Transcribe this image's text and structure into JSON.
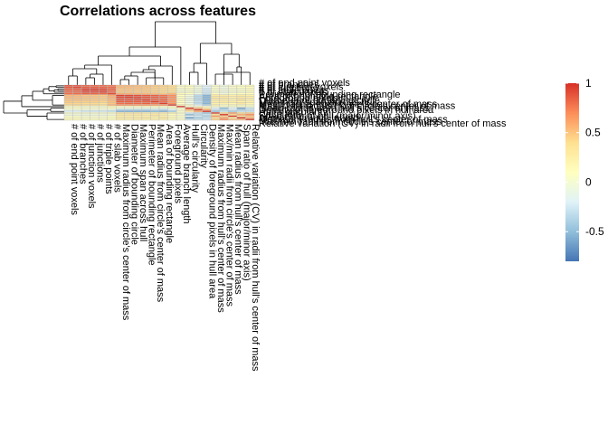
{
  "chart_data": {
    "type": "heatmap",
    "title": "Correlations across features",
    "features": [
      "# of end point voxels",
      "# of branches",
      "# of junction voxels",
      "# of junctions",
      "# of triple points",
      "# of slab voxels",
      "Maximum radius from circle's center of mass",
      "Diameter of bounding circle",
      "Maximum span across hull",
      "Perimeter of bounding rectangle",
      "Mean radius from circle's center of mass",
      "Area of bounding rectangle",
      "Foreground pixels",
      "Average branch length",
      "Hull's circularity",
      "Circularity",
      "Density of foreground pixels in hull area",
      "Maximum radius from hull's center of mass",
      "Max/min radii from circle's center of mass",
      "Mean radius from hull's center of mass",
      "Span ratio of hull (major/minor axis)",
      "Relative variation (CV) in radii from hull's center of mass"
    ],
    "order_columns": [
      0,
      1,
      2,
      3,
      4,
      5,
      6,
      7,
      8,
      9,
      10,
      11,
      12,
      13,
      14,
      15,
      16,
      17,
      18,
      19,
      20,
      21
    ],
    "order_rows": [
      21,
      20,
      19,
      18,
      17,
      16,
      15,
      14,
      13,
      12,
      11,
      10,
      9,
      8,
      7,
      6,
      5,
      4,
      3,
      2,
      1,
      0
    ],
    "row_labels": [
      "# of end point voxels",
      "# of branches",
      "# of junction voxels",
      "# of junctions",
      "# of triple points",
      "# of slab voxels",
      "Perimeter of bounding rectangle",
      "Area of bounding rectangle",
      "Foreground pixels",
      "Diameter of bounding circle",
      "Maximum span across hull",
      "Mean radius from circle's center of mass",
      "Maximum radius from circle's center of mass",
      "Mean radius from hull's center of mass",
      "Density of foreground pixels in hull area",
      "Hull's circularity",
      "Circularity",
      "Span ratio of hull (major/minor axis)",
      "Average branch length",
      "Maximum radius from hull's center of mass",
      "Max/min radii from circle's center of mass",
      "Relative variation (CV) in radii from hull's center of mass"
    ],
    "values_note_rows_top_to_bottom": "",
    "matrix": [
      [
        0.9,
        0.88,
        0.85,
        0.84,
        0.83,
        0.8,
        0.55,
        0.55,
        0.52,
        0.5,
        0.48,
        0.45,
        0.4,
        0.05,
        0.1,
        -0.05,
        -0.2,
        0.05,
        -0.05,
        0.05,
        0.1,
        0.15
      ],
      [
        0.88,
        0.92,
        0.86,
        0.85,
        0.84,
        0.82,
        0.55,
        0.53,
        0.52,
        0.5,
        0.46,
        0.44,
        0.42,
        0.08,
        0.1,
        -0.05,
        -0.2,
        0.05,
        -0.05,
        0.05,
        0.1,
        0.1
      ],
      [
        0.85,
        0.86,
        0.95,
        0.95,
        0.93,
        0.85,
        0.5,
        0.5,
        0.5,
        0.48,
        0.45,
        0.42,
        0.4,
        0.02,
        0.05,
        -0.05,
        -0.25,
        0.05,
        -0.05,
        0.02,
        0.05,
        0.1
      ],
      [
        0.84,
        0.85,
        0.95,
        0.95,
        0.93,
        0.84,
        0.5,
        0.5,
        0.48,
        0.48,
        0.45,
        0.42,
        0.4,
        0.02,
        0.05,
        -0.05,
        -0.25,
        0.05,
        -0.05,
        0.02,
        0.05,
        0.1
      ],
      [
        0.83,
        0.84,
        0.93,
        0.93,
        0.96,
        0.83,
        0.48,
        0.48,
        0.47,
        0.46,
        0.44,
        0.4,
        0.38,
        0.02,
        0.05,
        -0.05,
        -0.25,
        0.05,
        -0.05,
        0.02,
        0.05,
        0.1
      ],
      [
        0.8,
        0.82,
        0.85,
        0.84,
        0.83,
        0.92,
        0.6,
        0.58,
        0.56,
        0.55,
        0.52,
        0.5,
        0.55,
        0.15,
        0.1,
        -0.1,
        -0.3,
        0.1,
        -0.05,
        0.1,
        0.1,
        0.1
      ],
      [
        0.55,
        0.55,
        0.5,
        0.5,
        0.48,
        0.6,
        0.95,
        0.92,
        0.9,
        0.88,
        0.85,
        0.8,
        0.7,
        0.1,
        -0.05,
        -0.35,
        -0.55,
        0.3,
        0.3,
        0.25,
        0.3,
        0.25
      ],
      [
        0.55,
        0.53,
        0.5,
        0.5,
        0.48,
        0.58,
        0.92,
        0.95,
        0.9,
        0.88,
        0.85,
        0.82,
        0.7,
        0.1,
        -0.05,
        -0.35,
        -0.55,
        0.3,
        0.3,
        0.25,
        0.3,
        0.25
      ],
      [
        0.52,
        0.52,
        0.5,
        0.48,
        0.47,
        0.56,
        0.9,
        0.9,
        0.95,
        0.88,
        0.85,
        0.82,
        0.68,
        0.1,
        -0.05,
        -0.35,
        -0.55,
        0.3,
        0.3,
        0.25,
        0.3,
        0.25
      ],
      [
        0.5,
        0.5,
        0.48,
        0.48,
        0.46,
        0.55,
        0.88,
        0.88,
        0.88,
        0.95,
        0.85,
        0.85,
        0.7,
        0.1,
        -0.1,
        -0.35,
        -0.55,
        0.25,
        0.25,
        0.2,
        0.35,
        0.2
      ],
      [
        0.48,
        0.46,
        0.45,
        0.45,
        0.44,
        0.52,
        0.85,
        0.85,
        0.85,
        0.85,
        0.95,
        0.8,
        0.66,
        0.1,
        -0.05,
        -0.3,
        -0.5,
        0.25,
        0.3,
        0.3,
        0.2,
        0.25
      ],
      [
        0.45,
        0.44,
        0.42,
        0.42,
        0.4,
        0.5,
        0.8,
        0.82,
        0.82,
        0.85,
        0.8,
        0.95,
        0.7,
        0.1,
        -0.1,
        -0.35,
        -0.55,
        0.25,
        0.25,
        0.2,
        0.35,
        0.2
      ],
      [
        0.4,
        0.42,
        0.4,
        0.4,
        0.38,
        0.55,
        0.7,
        0.7,
        0.68,
        0.7,
        0.66,
        0.7,
        0.95,
        0.15,
        0.05,
        -0.2,
        -0.4,
        0.2,
        0.1,
        0.15,
        0.15,
        0.1
      ],
      [
        0.05,
        0.08,
        0.02,
        0.02,
        0.02,
        0.15,
        0.1,
        0.1,
        0.1,
        0.1,
        0.1,
        0.1,
        0.15,
        0.95,
        0.05,
        0.05,
        0.05,
        0.05,
        0.05,
        0.05,
        0.05,
        0.05
      ],
      [
        0.1,
        0.1,
        0.05,
        0.05,
        0.05,
        0.1,
        -0.05,
        -0.05,
        -0.05,
        -0.1,
        -0.05,
        -0.1,
        0.05,
        0.05,
        0.95,
        0.55,
        0.3,
        -0.2,
        -0.5,
        -0.2,
        -0.6,
        -0.3
      ],
      [
        -0.05,
        -0.05,
        -0.05,
        -0.05,
        -0.05,
        -0.1,
        -0.35,
        -0.35,
        -0.35,
        -0.35,
        -0.3,
        -0.35,
        -0.2,
        0.05,
        0.55,
        0.95,
        0.6,
        -0.3,
        -0.35,
        -0.25,
        -0.4,
        -0.3
      ],
      [
        -0.2,
        -0.2,
        -0.25,
        -0.25,
        -0.25,
        -0.3,
        -0.55,
        -0.55,
        -0.55,
        -0.55,
        -0.5,
        -0.55,
        -0.4,
        0.05,
        0.3,
        0.6,
        0.95,
        -0.45,
        -0.3,
        -0.4,
        -0.3,
        -0.3
      ],
      [
        0.05,
        0.05,
        0.05,
        0.05,
        0.05,
        0.1,
        0.3,
        0.3,
        0.3,
        0.25,
        0.25,
        0.25,
        0.2,
        0.05,
        -0.2,
        -0.3,
        -0.45,
        0.95,
        0.4,
        0.65,
        0.4,
        0.45
      ],
      [
        -0.05,
        -0.05,
        -0.05,
        -0.05,
        -0.05,
        -0.05,
        0.3,
        0.3,
        0.3,
        0.25,
        0.3,
        0.25,
        0.1,
        0.05,
        -0.5,
        -0.35,
        -0.3,
        0.4,
        0.95,
        0.45,
        0.6,
        0.7
      ],
      [
        0.05,
        0.05,
        0.02,
        0.02,
        0.02,
        0.1,
        0.25,
        0.25,
        0.25,
        0.2,
        0.3,
        0.2,
        0.15,
        0.05,
        -0.2,
        -0.25,
        -0.4,
        0.65,
        0.45,
        0.95,
        0.35,
        0.5
      ],
      [
        0.1,
        0.1,
        0.05,
        0.05,
        0.05,
        0.1,
        0.3,
        0.3,
        0.3,
        0.35,
        0.2,
        0.35,
        0.15,
        0.05,
        -0.6,
        -0.4,
        -0.3,
        0.4,
        0.6,
        0.35,
        0.95,
        0.55
      ],
      [
        0.15,
        0.1,
        0.1,
        0.1,
        0.1,
        0.1,
        0.25,
        0.25,
        0.25,
        0.2,
        0.25,
        0.2,
        0.1,
        0.05,
        -0.3,
        -0.3,
        -0.3,
        0.45,
        0.7,
        0.5,
        0.55,
        0.95
      ]
    ],
    "legend": {
      "ticks": [
        1,
        0.5,
        0,
        -0.5
      ],
      "range": [
        -0.8,
        1
      ],
      "colors": [
        "#4575B4",
        "#91BFDB",
        "#E0F3F8",
        "#FFFFBF",
        "#FEE090",
        "#FC8D59",
        "#D73027"
      ]
    },
    "grid_color": "#BDBDBD"
  }
}
